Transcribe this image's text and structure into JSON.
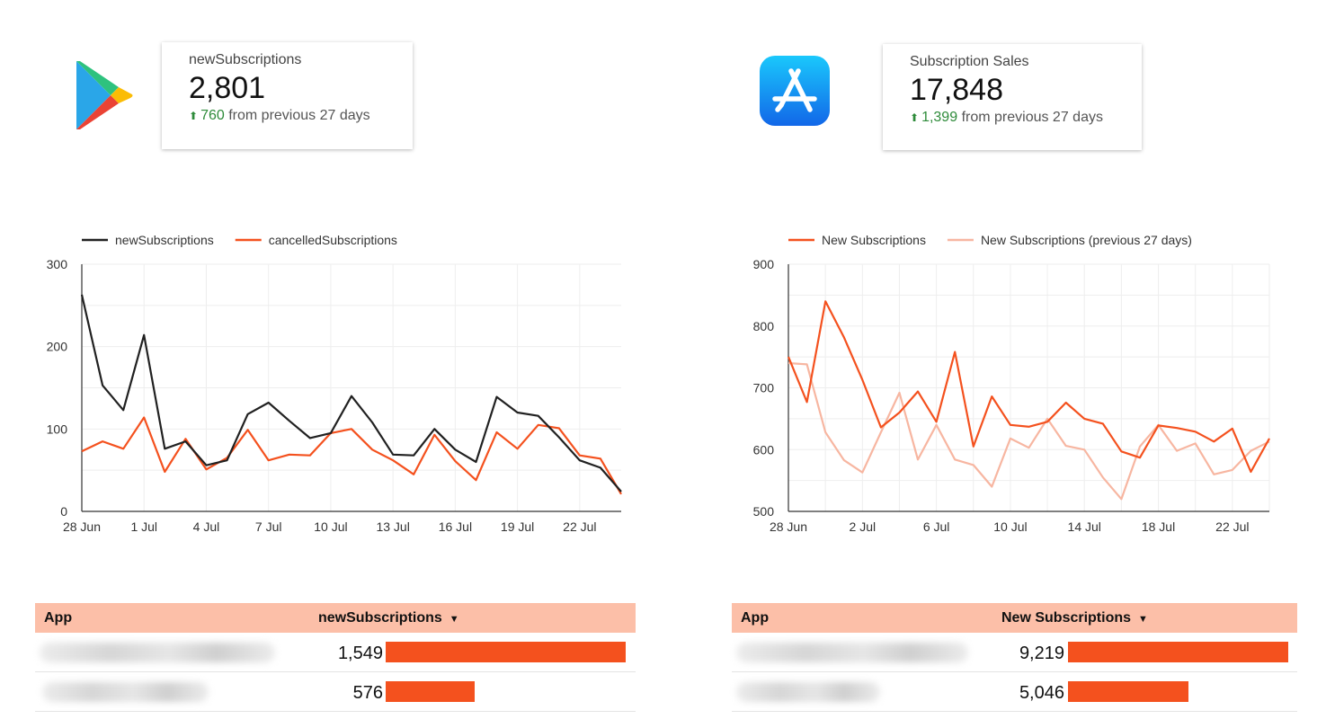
{
  "left": {
    "logo_icon": "google-play-icon",
    "kpi": {
      "label": "newSubscriptions",
      "value": "2,801",
      "delta": "760",
      "delta_text": "from previous 27 days"
    },
    "chart_data": {
      "type": "line",
      "legend": [
        "newSubscriptions",
        "cancelledSubscriptions"
      ],
      "legend_position": "top-left",
      "x_ticks": [
        "28 Jun",
        "1 Jul",
        "4 Jul",
        "7 Jul",
        "10 Jul",
        "13 Jul",
        "16 Jul",
        "19 Jul",
        "22 Jul"
      ],
      "y_ticks": [
        "0",
        "100",
        "200",
        "300"
      ],
      "ylim": [
        0,
        300
      ],
      "grid": true,
      "series": [
        {
          "name": "newSubscriptions",
          "color": "#212121",
          "values": [
            263,
            153,
            123,
            214,
            76,
            85,
            56,
            62,
            118,
            132,
            110,
            89,
            95,
            140,
            108,
            69,
            68,
            100,
            75,
            60,
            139,
            120,
            116,
            90,
            62,
            53,
            24
          ]
        },
        {
          "name": "cancelledSubscriptions",
          "color": "#f4511e",
          "values": [
            73,
            85,
            76,
            114,
            48,
            88,
            51,
            65,
            99,
            62,
            69,
            68,
            95,
            100,
            75,
            62,
            45,
            93,
            61,
            38,
            96,
            76,
            105,
            101,
            68,
            64,
            21
          ]
        }
      ]
    },
    "table": {
      "headers": [
        "App",
        "newSubscriptions"
      ],
      "rows": [
        {
          "value": "1,549",
          "bar_fraction": 1.0
        },
        {
          "value": "576",
          "bar_fraction": 0.372
        }
      ]
    }
  },
  "right": {
    "logo_icon": "app-store-icon",
    "kpi": {
      "label": "Subscription Sales",
      "value": "17,848",
      "delta": "1,399",
      "delta_text": "from previous 27 days"
    },
    "chart_data": {
      "type": "line",
      "legend": [
        "New Subscriptions",
        "New Subscriptions (previous 27 days)"
      ],
      "legend_position": "top-left",
      "x_ticks": [
        "28 Jun",
        "2 Jul",
        "6 Jul",
        "10 Jul",
        "14 Jul",
        "18 Jul",
        "22 Jul"
      ],
      "y_ticks": [
        "500",
        "600",
        "700",
        "800",
        "900"
      ],
      "ylim": [
        500,
        900
      ],
      "grid": true,
      "series": [
        {
          "name": "New Subscriptions",
          "color": "#f4511e",
          "values": [
            750,
            677,
            840,
            782,
            713,
            636,
            660,
            694,
            645,
            758,
            605,
            686,
            640,
            637,
            645,
            676,
            650,
            642,
            597,
            587,
            639,
            635,
            629,
            613,
            634,
            564,
            618
          ]
        },
        {
          "name": "New Subscriptions (previous 27 days)",
          "color": "#f7b6a1",
          "values": [
            740,
            738,
            628,
            583,
            563,
            628,
            692,
            584,
            640,
            584,
            575,
            540,
            618,
            603,
            650,
            606,
            600,
            555,
            520,
            605,
            640,
            598,
            610,
            560,
            567,
            598,
            613
          ]
        }
      ]
    },
    "table": {
      "headers": [
        "App",
        "New Subscriptions"
      ],
      "rows": [
        {
          "value": "9,219",
          "bar_fraction": 1.0
        },
        {
          "value": "5,046",
          "bar_fraction": 0.547
        }
      ]
    }
  }
}
